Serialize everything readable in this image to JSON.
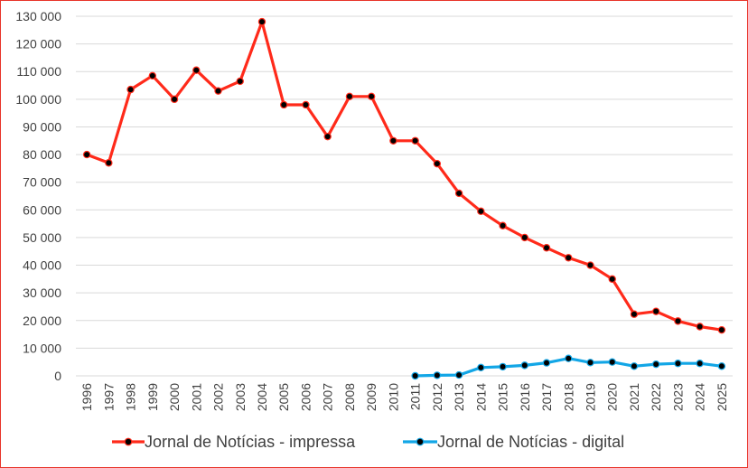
{
  "chart_data": {
    "type": "line",
    "title": "",
    "xlabel": "",
    "ylabel": "",
    "ylim": [
      0,
      130000
    ],
    "yticks": [
      "0",
      "10 000",
      "20 000",
      "30 000",
      "40 000",
      "50 000",
      "60 000",
      "70 000",
      "80 000",
      "90 000",
      "100 000",
      "110 000",
      "120 000",
      "130 000"
    ],
    "categories": [
      "1996",
      "1997",
      "1998",
      "1999",
      "2000",
      "2001",
      "2002",
      "2003",
      "2004",
      "2005",
      "2006",
      "2007",
      "2008",
      "2009",
      "2010",
      "2011",
      "2012",
      "2013",
      "2014",
      "2015",
      "2016",
      "2017",
      "2018",
      "2019",
      "2020",
      "2021",
      "2022",
      "2023",
      "2024",
      "2025"
    ],
    "grid": "horizontal",
    "legend_position": "bottom",
    "series": [
      {
        "name": "Jornal de Notícias - impressa",
        "color": "#ff2a1a",
        "values": [
          80000,
          77000,
          103500,
          108500,
          100000,
          110500,
          103000,
          106500,
          128000,
          98000,
          98000,
          86500,
          101000,
          101000,
          85000,
          85000,
          76700,
          66000,
          59500,
          54300,
          50000,
          46300,
          42700,
          40000,
          35000,
          22300,
          23300,
          19800,
          17800,
          16600
        ]
      },
      {
        "name": "Jornal de Notícias - digital",
        "color": "#12a6e6",
        "values": [
          null,
          null,
          null,
          null,
          null,
          null,
          null,
          null,
          null,
          null,
          null,
          null,
          null,
          null,
          null,
          0,
          200,
          300,
          3000,
          3300,
          3800,
          4700,
          6300,
          4800,
          5000,
          3500,
          4200,
          4500,
          4500,
          3500
        ]
      }
    ]
  }
}
